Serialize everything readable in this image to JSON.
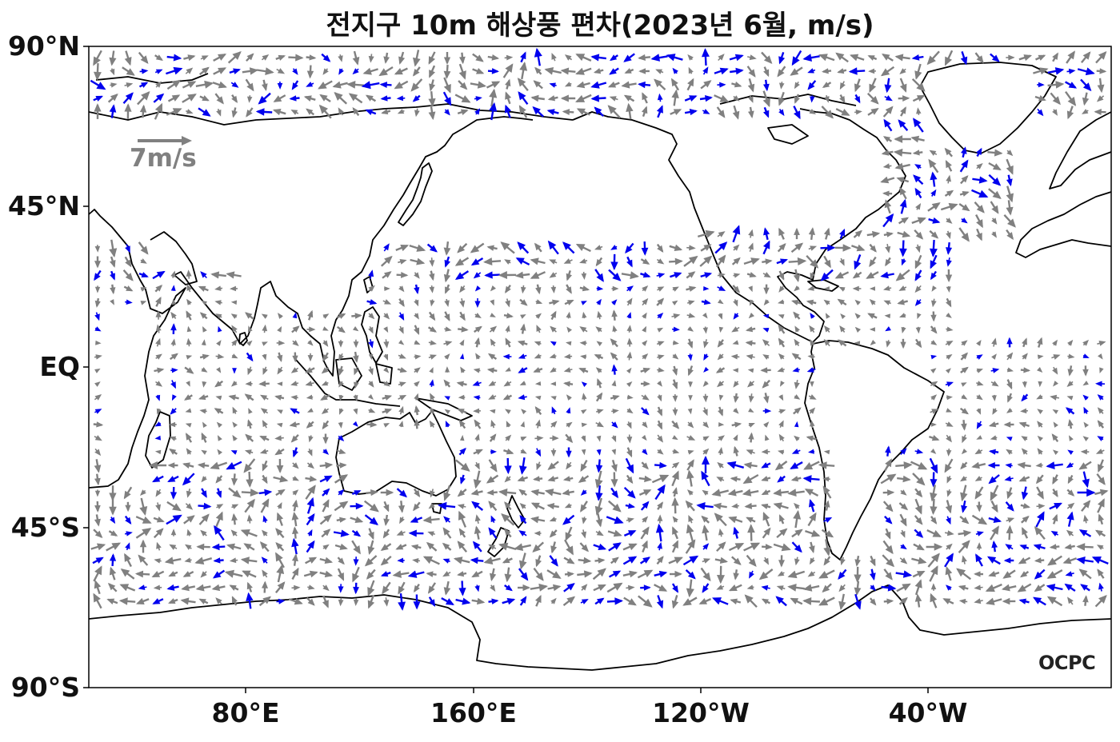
{
  "title": "전지구 10m 해상풍 편차(2023년 6월, m/s)",
  "map": {
    "projection": "equirectangular",
    "lon_range": [
      40,
      400
    ],
    "lat_range": [
      -90,
      90
    ],
    "latitude_labels": [
      "90°N",
      "45°N",
      "EQ",
      "45°S",
      "90°S"
    ],
    "longitude_labels": [
      "80°E",
      "160°E",
      "120°W",
      "40°W"
    ],
    "colors": {
      "coastline": "#000000",
      "normal_arrow": "#808080",
      "significant_arrow": "#0000ee"
    }
  },
  "reference_vector": {
    "label": "7m/s",
    "speed": 7,
    "color": "#808080"
  },
  "logo": "OCPC"
}
